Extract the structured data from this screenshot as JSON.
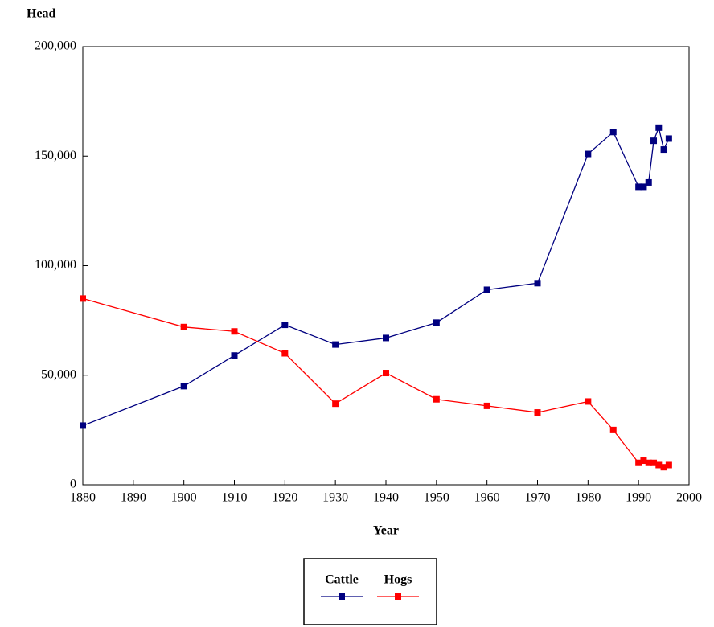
{
  "chart_data": {
    "type": "line",
    "y_label": "Head",
    "x_label": "Year",
    "x": [
      1880,
      1900,
      1910,
      1920,
      1930,
      1940,
      1950,
      1960,
      1970,
      1980,
      1985,
      1990,
      1991,
      1992,
      1993,
      1994,
      1995,
      1996
    ],
    "series": [
      {
        "name": "Cattle",
        "color": "#000080",
        "values": [
          27000,
          45000,
          59000,
          73000,
          64000,
          67000,
          74000,
          89000,
          92000,
          151000,
          161000,
          136000,
          136000,
          138000,
          157000,
          163000,
          153000,
          158000
        ]
      },
      {
        "name": "Hogs",
        "color": "#ff0000",
        "values": [
          85000,
          72000,
          70000,
          60000,
          37000,
          51000,
          39000,
          36000,
          33000,
          38000,
          25000,
          10000,
          11000,
          10000,
          10000,
          9000,
          8000,
          9000
        ]
      }
    ],
    "xlim": [
      1880,
      2000
    ],
    "xticks": [
      1880,
      1890,
      1900,
      1910,
      1920,
      1930,
      1940,
      1950,
      1960,
      1970,
      1980,
      1990,
      2000
    ],
    "ylim": [
      0,
      200000
    ],
    "yticks": [
      0,
      {
        "value": 50000,
        "label": "50,000"
      },
      {
        "value": 100000,
        "label": "100,000"
      },
      {
        "value": 150000,
        "label": "150,000"
      },
      {
        "value": 200000,
        "label": "200,000"
      }
    ],
    "legend": "bottom"
  }
}
